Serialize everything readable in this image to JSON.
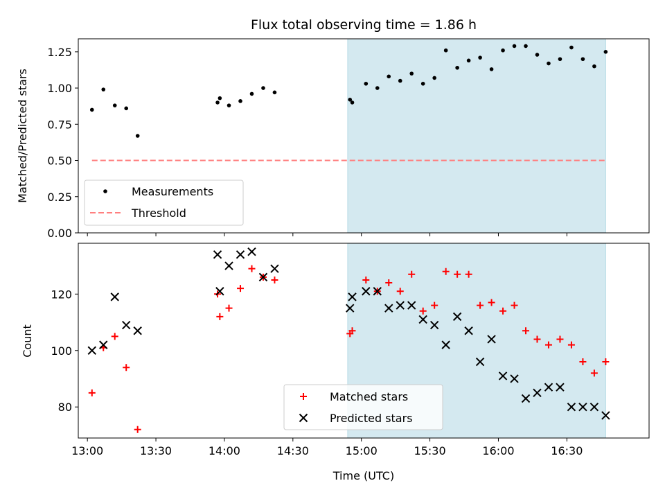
{
  "colors": {
    "measurement": "#000000",
    "threshold": "#ff7f7f",
    "matched": "#ff0000",
    "predicted": "#000000",
    "shade": "#d4e9f0",
    "shade_edge": "#b8dbe6"
  },
  "chart_data": [
    {
      "type": "scatter",
      "title": "Flux total observing time = 1.86 h",
      "xlabel": "",
      "ylabel": "Matched/Predicted stars",
      "xlim": [
        "12:56",
        "17:06"
      ],
      "ylim": [
        0,
        1.34
      ],
      "yticks": [
        "0.00",
        "0.25",
        "0.50",
        "0.75",
        "1.00",
        "1.25"
      ],
      "shaded_interval": [
        "14:54",
        "16:47"
      ],
      "legend_position": "lower-left",
      "series": [
        {
          "name": "Measurements",
          "marker": "dot",
          "x": [
            "13:02",
            "13:07",
            "13:12",
            "13:17",
            "13:22",
            "13:57",
            "13:58",
            "14:02",
            "14:07",
            "14:12",
            "14:17",
            "14:22",
            "14:55",
            "14:56",
            "15:02",
            "15:07",
            "15:12",
            "15:17",
            "15:22",
            "15:27",
            "15:32",
            "15:37",
            "15:42",
            "15:47",
            "15:52",
            "15:57",
            "16:02",
            "16:07",
            "16:12",
            "16:17",
            "16:22",
            "16:27",
            "16:32",
            "16:37",
            "16:42",
            "16:47"
          ],
          "y": [
            0.85,
            0.99,
            0.88,
            0.86,
            0.67,
            0.9,
            0.93,
            0.88,
            0.91,
            0.96,
            1.0,
            0.97,
            0.92,
            0.9,
            1.03,
            1.0,
            1.08,
            1.05,
            1.1,
            1.03,
            1.07,
            1.26,
            1.14,
            1.19,
            1.21,
            1.13,
            1.26,
            1.29,
            1.29,
            1.23,
            1.17,
            1.2,
            1.28,
            1.2,
            1.15,
            1.25
          ]
        },
        {
          "name": "Threshold",
          "style": "dashed",
          "x": [
            "13:02",
            "16:47"
          ],
          "y": [
            0.5,
            0.5
          ]
        }
      ]
    },
    {
      "type": "scatter",
      "title": "",
      "xlabel": "Time (UTC)",
      "ylabel": "Count",
      "xlim": [
        "12:56",
        "17:06"
      ],
      "ylim": [
        69,
        138
      ],
      "yticks": [
        "80",
        "100",
        "120"
      ],
      "xticks": [
        "13:00",
        "13:30",
        "14:00",
        "14:30",
        "15:00",
        "15:30",
        "16:00",
        "16:30"
      ],
      "shaded_interval": [
        "14:54",
        "16:47"
      ],
      "legend_position": "lower-center",
      "series": [
        {
          "name": "Matched stars",
          "marker": "plus",
          "x": [
            "13:02",
            "13:07",
            "13:12",
            "13:17",
            "13:22",
            "13:57",
            "13:58",
            "14:02",
            "14:07",
            "14:12",
            "14:17",
            "14:22",
            "14:55",
            "14:56",
            "15:02",
            "15:07",
            "15:12",
            "15:17",
            "15:22",
            "15:27",
            "15:32",
            "15:37",
            "15:42",
            "15:47",
            "15:52",
            "15:57",
            "16:02",
            "16:07",
            "16:12",
            "16:17",
            "16:22",
            "16:27",
            "16:32",
            "16:37",
            "16:42",
            "16:47"
          ],
          "y": [
            85,
            101,
            105,
            94,
            72,
            120,
            112,
            115,
            122,
            129,
            126,
            125,
            106,
            107,
            125,
            121,
            124,
            121,
            127,
            114,
            116,
            128,
            127,
            127,
            116,
            117,
            114,
            116,
            107,
            104,
            102,
            104,
            102,
            96,
            92,
            96
          ]
        },
        {
          "name": "Predicted stars",
          "marker": "x",
          "x": [
            "13:02",
            "13:07",
            "13:12",
            "13:17",
            "13:22",
            "13:57",
            "13:58",
            "14:02",
            "14:07",
            "14:12",
            "14:17",
            "14:22",
            "14:55",
            "14:56",
            "15:02",
            "15:07",
            "15:12",
            "15:17",
            "15:22",
            "15:27",
            "15:32",
            "15:37",
            "15:42",
            "15:47",
            "15:52",
            "15:57",
            "16:02",
            "16:07",
            "16:12",
            "16:17",
            "16:22",
            "16:27",
            "16:32",
            "16:37",
            "16:42",
            "16:47"
          ],
          "y": [
            100,
            102,
            119,
            109,
            107,
            134,
            121,
            130,
            134,
            135,
            126,
            129,
            115,
            119,
            121,
            121,
            115,
            116,
            116,
            111,
            109,
            102,
            112,
            107,
            96,
            104,
            91,
            90,
            83,
            85,
            87,
            87,
            80,
            80,
            80,
            77
          ]
        }
      ]
    }
  ]
}
